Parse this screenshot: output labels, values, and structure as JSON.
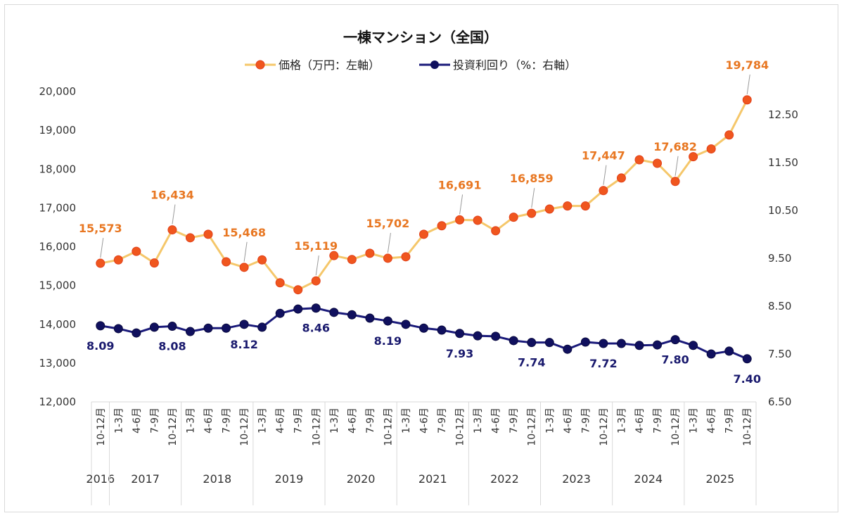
{
  "chart_data": {
    "type": "line",
    "title": "一棟マンション（全国）",
    "legend_position": "top",
    "grid": false,
    "categories": [
      "10-12月",
      "1-3月",
      "4-6月",
      "7-9月",
      "10-12月",
      "1-3月",
      "4-6月",
      "7-9月",
      "10-12月",
      "1-3月",
      "4-6月",
      "7-9月",
      "10-12月",
      "1-3月",
      "4-6月",
      "7-9月",
      "10-12月",
      "1-3月",
      "4-6月",
      "7-9月",
      "10-12月",
      "1-3月",
      "4-6月",
      "7-9月",
      "10-12月",
      "1-3月",
      "4-6月",
      "7-9月",
      "10-12月",
      "1-3月",
      "4-6月",
      "7-9月",
      "10-12月",
      "1-3月",
      "4-6月",
      "7-9月",
      "10-12月"
    ],
    "years": [
      {
        "label": "2016",
        "start": 0,
        "end": 0
      },
      {
        "label": "2017",
        "start": 1,
        "end": 4
      },
      {
        "label": "2018",
        "start": 5,
        "end": 8
      },
      {
        "label": "2019",
        "start": 9,
        "end": 12
      },
      {
        "label": "2020",
        "start": 13,
        "end": 16
      },
      {
        "label": "2021",
        "start": 17,
        "end": 20
      },
      {
        "label": "2022",
        "start": 21,
        "end": 24
      },
      {
        "label": "2023",
        "start": 25,
        "end": 28
      },
      {
        "label": "2024",
        "start": 29,
        "end": 32
      },
      {
        "label": "2025",
        "start": 33,
        "end": 36
      }
    ],
    "left_axis": {
      "ylim": [
        12000,
        20000
      ],
      "ticks": [
        "12,000",
        "13,000",
        "14,000",
        "15,000",
        "16,000",
        "17,000",
        "18,000",
        "19,000",
        "20,000"
      ]
    },
    "right_axis": {
      "ylim": [
        6.5,
        13.0
      ],
      "ticks": [
        "6.50",
        "7.50",
        "8.50",
        "9.50",
        "10.50",
        "11.50",
        "12.50"
      ]
    },
    "series": [
      {
        "name": "価格（万円：左軸）",
        "axis": "left",
        "line_color": "#f5c76a",
        "marker_color": "#f0561e",
        "values": [
          15573,
          15660,
          15880,
          15580,
          16434,
          16230,
          16320,
          15610,
          15468,
          15660,
          15070,
          14890,
          15119,
          15770,
          15670,
          15830,
          15702,
          15740,
          16320,
          16540,
          16691,
          16680,
          16410,
          16760,
          16859,
          16970,
          17050,
          17050,
          17447,
          17770,
          18240,
          18150,
          17682,
          18320,
          18520,
          18880,
          19784
        ],
        "labels": {
          "0": "15,573",
          "4": "16,434",
          "8": "15,468",
          "12": "15,119",
          "16": "15,702",
          "20": "16,691",
          "24": "16,859",
          "28": "17,447",
          "32": "17,682",
          "36": "19,784"
        }
      },
      {
        "name": "投資利回り（%：右軸）",
        "axis": "right",
        "line_color": "#1a1a7a",
        "marker_color": "#10105e",
        "values": [
          8.09,
          8.03,
          7.94,
          8.06,
          8.08,
          7.97,
          8.04,
          8.04,
          8.12,
          8.06,
          8.35,
          8.44,
          8.46,
          8.37,
          8.32,
          8.25,
          8.19,
          8.12,
          8.04,
          8.0,
          7.93,
          7.88,
          7.87,
          7.78,
          7.74,
          7.74,
          7.6,
          7.75,
          7.72,
          7.72,
          7.68,
          7.69,
          7.8,
          7.68,
          7.5,
          7.56,
          7.4
        ],
        "labels": {
          "0": "8.09",
          "4": "8.08",
          "8": "8.12",
          "12": "8.46",
          "16": "8.19",
          "20": "7.93",
          "24": "7.74",
          "28": "7.72",
          "32": "7.80",
          "36": "7.40"
        }
      }
    ]
  }
}
